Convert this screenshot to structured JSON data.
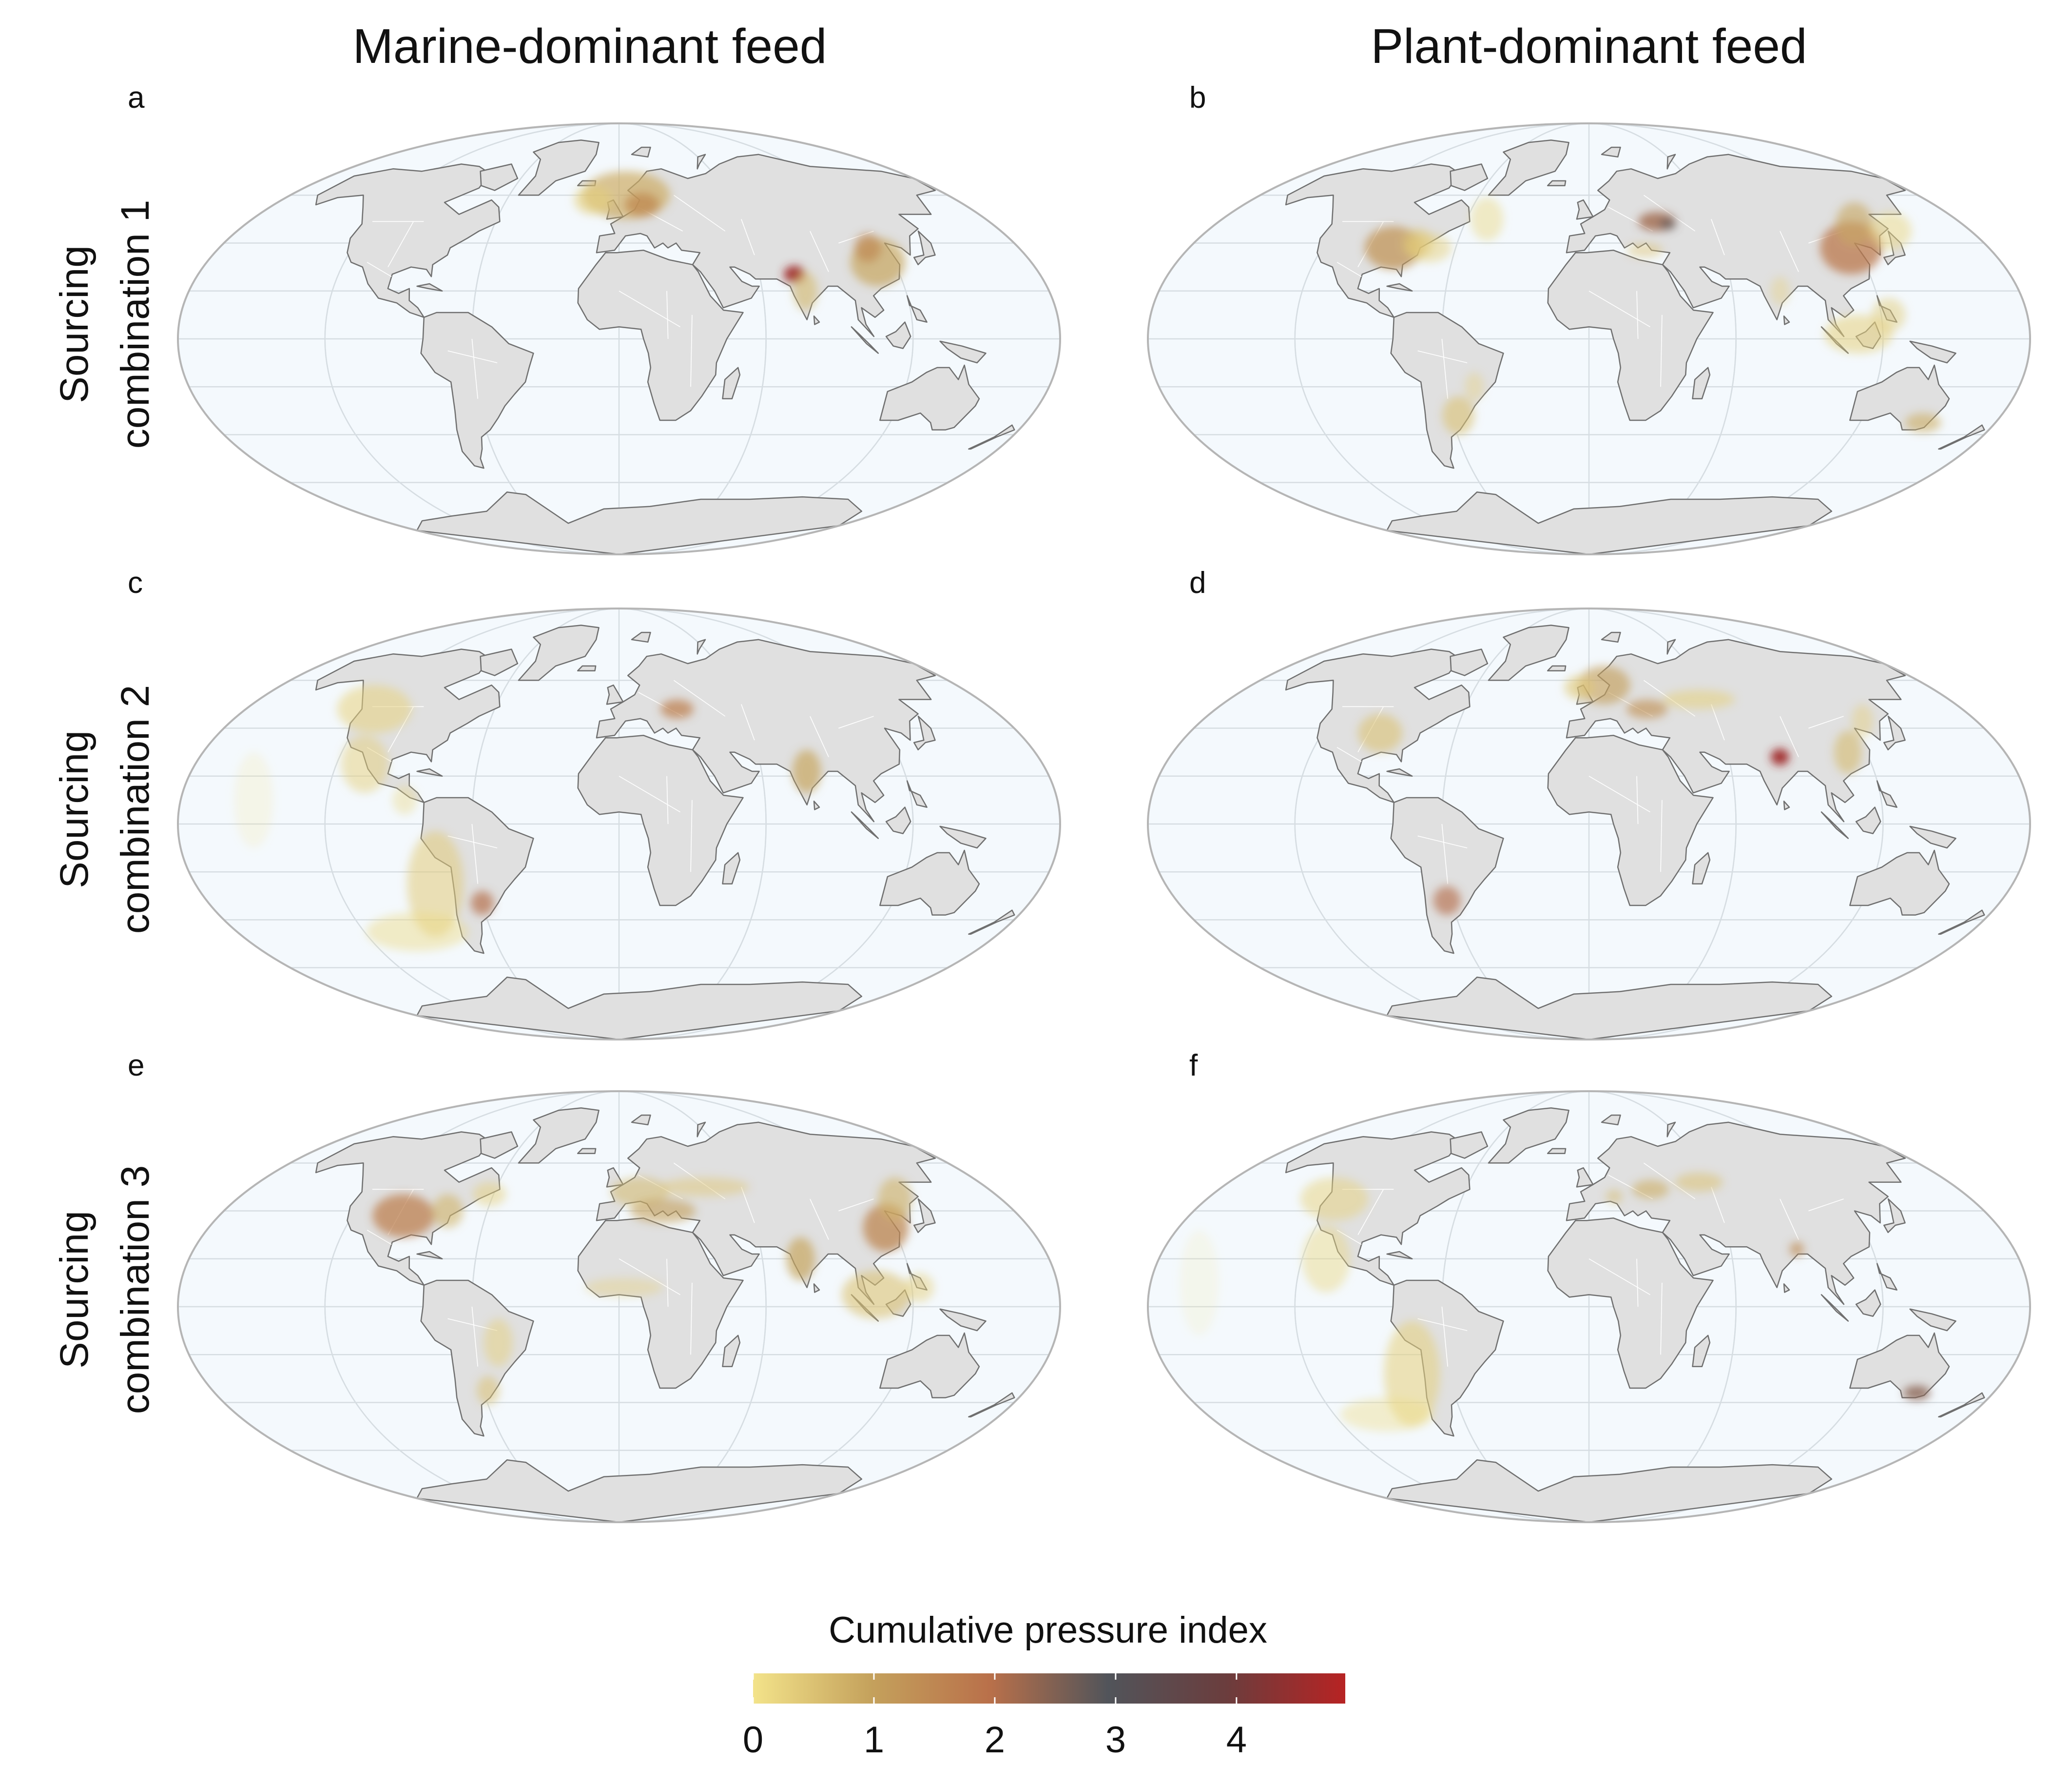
{
  "columns": [
    {
      "title": "Marine-dominant feed"
    },
    {
      "title": "Plant-dominant feed"
    }
  ],
  "rows": [
    {
      "line1": "Sourcing",
      "line2": "combination 1"
    },
    {
      "line1": "Sourcing",
      "line2": "combination 2"
    },
    {
      "line1": "Sourcing",
      "line2": "combination 3"
    }
  ],
  "panels": [
    {
      "label": "a",
      "feed": "Marine-dominant feed",
      "sourcing": "Sourcing combination 1",
      "hotspots": [
        {
          "region": "North Atlantic / Norway",
          "level": 1.2
        },
        {
          "region": "North India",
          "level": 4.5
        },
        {
          "region": "India",
          "level": 0.8
        },
        {
          "region": "East China",
          "level": 1.0
        }
      ]
    },
    {
      "label": "b",
      "feed": "Plant-dominant feed",
      "sourcing": "Sourcing combination 1",
      "hotspots": [
        {
          "region": "Eastern United States",
          "level": 1.5
        },
        {
          "region": "Eastern Europe",
          "level": 2.2
        },
        {
          "region": "China",
          "level": 1.8
        },
        {
          "region": "Southeast Asia",
          "level": 0.5
        },
        {
          "region": "Southern Brazil / Argentina",
          "level": 0.6
        },
        {
          "region": "Southeast Australia",
          "level": 0.6
        }
      ]
    },
    {
      "label": "c",
      "feed": "Marine-dominant feed",
      "sourcing": "Sourcing combination 2",
      "hotspots": [
        {
          "region": "Pacific coast of Americas",
          "level": 0.4
        },
        {
          "region": "Eastern Europe",
          "level": 1.6
        },
        {
          "region": "India",
          "level": 0.9
        },
        {
          "region": "Argentina",
          "level": 2.0
        }
      ]
    },
    {
      "label": "d",
      "feed": "Plant-dominant feed",
      "sourcing": "Sourcing combination 2",
      "hotspots": [
        {
          "region": "North Atlantic / Norway",
          "level": 1.0
        },
        {
          "region": "Eastern Europe",
          "level": 1.4
        },
        {
          "region": "North India",
          "level": 4.5
        },
        {
          "region": "East China",
          "level": 0.6
        },
        {
          "region": "United States",
          "level": 0.5
        },
        {
          "region": "Argentina",
          "level": 2.0
        }
      ]
    },
    {
      "label": "e",
      "feed": "Marine-dominant feed",
      "sourcing": "Sourcing combination 3",
      "hotspots": [
        {
          "region": "United States",
          "level": 1.6
        },
        {
          "region": "Europe / Mediterranean",
          "level": 1.0
        },
        {
          "region": "India",
          "level": 0.9
        },
        {
          "region": "China",
          "level": 1.5
        },
        {
          "region": "Southeast Asia",
          "level": 0.6
        },
        {
          "region": "Brazil / Argentina",
          "level": 0.5
        }
      ]
    },
    {
      "label": "f",
      "feed": "Plant-dominant feed",
      "sourcing": "Sourcing combination 3",
      "hotspots": [
        {
          "region": "Pacific coast of Americas",
          "level": 0.4
        },
        {
          "region": "Eastern Europe",
          "level": 0.9
        },
        {
          "region": "Central Asia",
          "level": 0.6
        },
        {
          "region": "South Asia",
          "level": 1.4
        },
        {
          "region": "Southeast Australia",
          "level": 2.5
        }
      ]
    }
  ],
  "legend": {
    "title": "Cumulative pressure index",
    "ticks": [
      "0",
      "1",
      "2",
      "3",
      "4"
    ],
    "tick_values": [
      0,
      1,
      2,
      3,
      4
    ],
    "range": [
      0,
      4.9
    ],
    "colors": [
      "#f3e38a",
      "#c4a15c",
      "#b9704a",
      "#51545a",
      "#6b3d3d",
      "#b72323"
    ]
  },
  "colors": {
    "ocean": "#f4f9fd",
    "land": "#e0e0e0",
    "coast": "#6f6f6f",
    "graticule": "#d6dde2",
    "outline": "#b5b5b5"
  }
}
